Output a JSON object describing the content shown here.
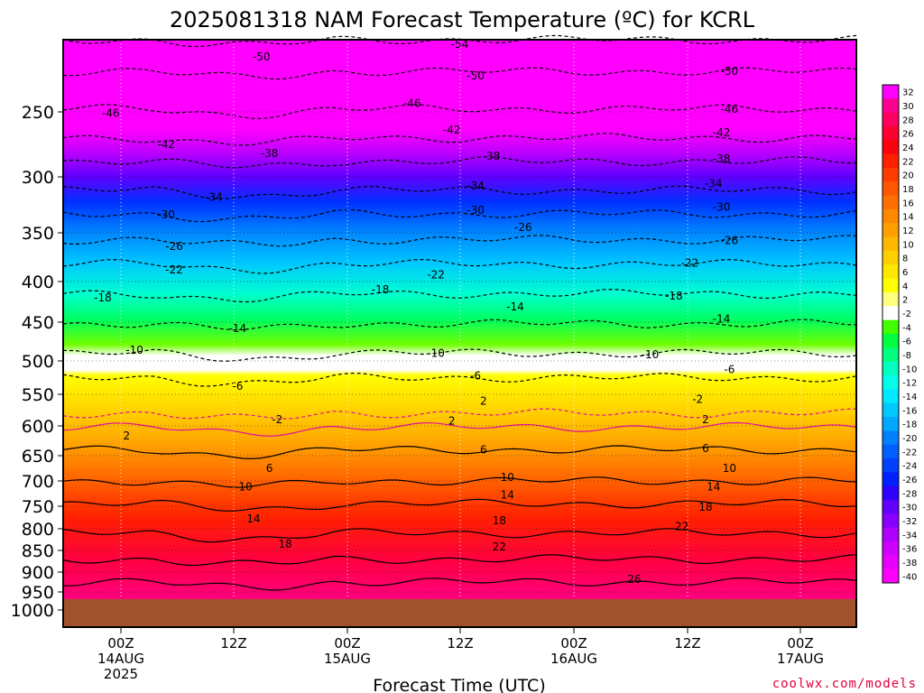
{
  "chart_data": {
    "type": "heatmap",
    "title": "2025081318 NAM Forecast Temperature (ºC) for KCRL",
    "xlabel": "Forecast Time (UTC)",
    "ylabel": "",
    "credit": "coolwx.com/models",
    "y_axis": {
      "scale": "pressure (hPa), top-down",
      "ticks": [
        "250",
        "300",
        "350",
        "400",
        "450",
        "500",
        "550",
        "600",
        "650",
        "700",
        "750",
        "800",
        "850",
        "900",
        "950",
        "1000"
      ],
      "range": [
        200,
        1030
      ]
    },
    "x_axis": {
      "range": [
        "2025-08-13 18Z",
        "2025-08-17 06Z"
      ],
      "ticks": [
        {
          "top": "00Z",
          "mid": "14AUG",
          "bottom": "2025"
        },
        {
          "top": "12Z",
          "mid": "",
          "bottom": ""
        },
        {
          "top": "00Z",
          "mid": "15AUG",
          "bottom": ""
        },
        {
          "top": "12Z",
          "mid": "",
          "bottom": ""
        },
        {
          "top": "00Z",
          "mid": "16AUG",
          "bottom": ""
        },
        {
          "top": "12Z",
          "mid": "",
          "bottom": ""
        },
        {
          "top": "00Z",
          "mid": "17AUG",
          "bottom": ""
        }
      ]
    },
    "colorbar": {
      "labels": [
        "32",
        "30",
        "28",
        "26",
        "24",
        "22",
        "20",
        "18",
        "16",
        "14",
        "12",
        "10",
        "8",
        "6",
        "4",
        "2",
        "-2",
        "-4",
        "-6",
        "-8",
        "-10",
        "-12",
        "-14",
        "-16",
        "-18",
        "-20",
        "-22",
        "-24",
        "-26",
        "-28",
        "-30",
        "-32",
        "-34",
        "-36",
        "-38",
        "-40"
      ]
    },
    "contours": [
      {
        "label": "-54",
        "value": -54,
        "pressure": 200
      },
      {
        "label": "-50",
        "value": -50,
        "pressure": 222
      },
      {
        "label": "-46",
        "value": -46,
        "pressure": 248
      },
      {
        "label": "-42",
        "value": -42,
        "pressure": 270
      },
      {
        "label": "-38",
        "value": -38,
        "pressure": 288
      },
      {
        "label": "-34",
        "value": -34,
        "pressure": 312
      },
      {
        "label": "-30",
        "value": -30,
        "pressure": 333
      },
      {
        "label": "-26",
        "value": -26,
        "pressure": 357
      },
      {
        "label": "-22",
        "value": -22,
        "pressure": 382
      },
      {
        "label": "-18",
        "value": -18,
        "pressure": 415
      },
      {
        "label": "-14",
        "value": -14,
        "pressure": 452
      },
      {
        "label": "-10",
        "value": -10,
        "pressure": 490
      },
      {
        "label": "-6",
        "value": -6,
        "pressure": 525
      },
      {
        "label": "-2",
        "value": -2,
        "pressure": 580
      },
      {
        "label": "2",
        "value": 2,
        "pressure": 602
      },
      {
        "label": "6",
        "value": 6,
        "pressure": 640
      },
      {
        "label": "10",
        "value": 10,
        "pressure": 700
      },
      {
        "label": "14",
        "value": 14,
        "pressure": 745
      },
      {
        "label": "18",
        "value": 18,
        "pressure": 810
      },
      {
        "label": "22",
        "value": 22,
        "pressure": 870
      },
      {
        "label": "26",
        "value": 26,
        "pressure": 925
      }
    ],
    "contour_labels": [
      {
        "text": "-50",
        "x": 0.25,
        "p": 212
      },
      {
        "text": "-54",
        "x": 0.5,
        "p": 203
      },
      {
        "text": "-50",
        "x": 0.52,
        "p": 225
      },
      {
        "text": "-50",
        "x": 0.84,
        "p": 222
      },
      {
        "text": "-46",
        "x": 0.06,
        "p": 251
      },
      {
        "text": "-46",
        "x": 0.44,
        "p": 244
      },
      {
        "text": "-46",
        "x": 0.84,
        "p": 248
      },
      {
        "text": "-42",
        "x": 0.13,
        "p": 275
      },
      {
        "text": "-42",
        "x": 0.49,
        "p": 264
      },
      {
        "text": "-42",
        "x": 0.83,
        "p": 266
      },
      {
        "text": "-38",
        "x": 0.26,
        "p": 282
      },
      {
        "text": "-38",
        "x": 0.54,
        "p": 284
      },
      {
        "text": "-38",
        "x": 0.83,
        "p": 286
      },
      {
        "text": "-34",
        "x": 0.19,
        "p": 318
      },
      {
        "text": "-34",
        "x": 0.52,
        "p": 308
      },
      {
        "text": "-34",
        "x": 0.82,
        "p": 306
      },
      {
        "text": "-30",
        "x": 0.13,
        "p": 334
      },
      {
        "text": "-30",
        "x": 0.52,
        "p": 330
      },
      {
        "text": "-30",
        "x": 0.83,
        "p": 327
      },
      {
        "text": "-26",
        "x": 0.14,
        "p": 364
      },
      {
        "text": "-26",
        "x": 0.58,
        "p": 345
      },
      {
        "text": "-26",
        "x": 0.84,
        "p": 358
      },
      {
        "text": "-22",
        "x": 0.14,
        "p": 388
      },
      {
        "text": "-22",
        "x": 0.47,
        "p": 393
      },
      {
        "text": "-22",
        "x": 0.79,
        "p": 381
      },
      {
        "text": "-18",
        "x": 0.05,
        "p": 420
      },
      {
        "text": "-18",
        "x": 0.4,
        "p": 410
      },
      {
        "text": "-18",
        "x": 0.77,
        "p": 418
      },
      {
        "text": "-14",
        "x": 0.22,
        "p": 458
      },
      {
        "text": "-14",
        "x": 0.57,
        "p": 431
      },
      {
        "text": "-14",
        "x": 0.83,
        "p": 446
      },
      {
        "text": "-10",
        "x": 0.09,
        "p": 486
      },
      {
        "text": "-10",
        "x": 0.47,
        "p": 490
      },
      {
        "text": "-10",
        "x": 0.74,
        "p": 492
      },
      {
        "text": "-6",
        "x": 0.22,
        "p": 538
      },
      {
        "text": "-6",
        "x": 0.52,
        "p": 522
      },
      {
        "text": "-6",
        "x": 0.84,
        "p": 513
      },
      {
        "text": "2",
        "x": 0.53,
        "p": 561
      },
      {
        "text": "-2",
        "x": 0.8,
        "p": 558
      },
      {
        "text": "-2",
        "x": 0.27,
        "p": 590
      },
      {
        "text": "2",
        "x": 0.08,
        "p": 617
      },
      {
        "text": "2",
        "x": 0.49,
        "p": 592
      },
      {
        "text": "2",
        "x": 0.81,
        "p": 590
      },
      {
        "text": "6",
        "x": 0.53,
        "p": 640
      },
      {
        "text": "6",
        "x": 0.81,
        "p": 638
      },
      {
        "text": "6",
        "x": 0.26,
        "p": 675
      },
      {
        "text": "10",
        "x": 0.56,
        "p": 693
      },
      {
        "text": "10",
        "x": 0.84,
        "p": 675
      },
      {
        "text": "10",
        "x": 0.23,
        "p": 712
      },
      {
        "text": "14",
        "x": 0.56,
        "p": 728
      },
      {
        "text": "14",
        "x": 0.82,
        "p": 712
      },
      {
        "text": "14",
        "x": 0.24,
        "p": 778
      },
      {
        "text": "18",
        "x": 0.55,
        "p": 782
      },
      {
        "text": "18",
        "x": 0.81,
        "p": 752
      },
      {
        "text": "18",
        "x": 0.28,
        "p": 835
      },
      {
        "text": "22",
        "x": 0.55,
        "p": 842
      },
      {
        "text": "22",
        "x": 0.78,
        "p": 795
      },
      {
        "text": "26",
        "x": 0.72,
        "p": 918
      }
    ]
  }
}
